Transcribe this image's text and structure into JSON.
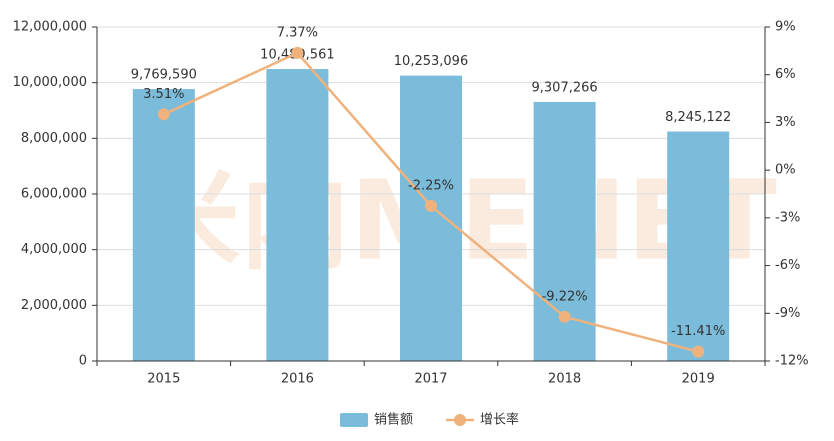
{
  "chart_data": {
    "type": "bar",
    "watermark": "米内MENET",
    "categories": [
      "2015",
      "2016",
      "2017",
      "2018",
      "2019"
    ],
    "series": [
      {
        "name": "销售额",
        "type": "bar",
        "color": "#7bbcdb",
        "axis": "y",
        "values": [
          9769590,
          10489561,
          10253096,
          9307266,
          8245122
        ],
        "value_labels": [
          "9,769,590",
          "10,489,561",
          "10,253,096",
          "9,307,266",
          "8,245,122"
        ]
      },
      {
        "name": "增长率",
        "type": "line",
        "color": "#efb27c",
        "axis": "y2",
        "values": [
          3.51,
          7.37,
          -2.25,
          -9.22,
          -11.41
        ],
        "value_labels": [
          "3.51%",
          "7.37%",
          "-2.25%",
          "-9.22%",
          "-11.41%"
        ]
      }
    ],
    "ylim": [
      0,
      12000000
    ],
    "yticks": [
      {
        "value": 0,
        "label": "0"
      },
      {
        "value": 2000000,
        "label": "2,000,000"
      },
      {
        "value": 4000000,
        "label": "4,000,000"
      },
      {
        "value": 6000000,
        "label": "6,000,000"
      },
      {
        "value": 8000000,
        "label": "8,000,000"
      },
      {
        "value": 10000000,
        "label": "10,000,000"
      },
      {
        "value": 12000000,
        "label": "12,000,000"
      }
    ],
    "y2lim": [
      -12,
      9
    ],
    "y2ticks": [
      {
        "value": -12,
        "label": "-12%"
      },
      {
        "value": -9,
        "label": "-9%"
      },
      {
        "value": -6,
        "label": "-6%"
      },
      {
        "value": -3,
        "label": "-3%"
      },
      {
        "value": 0,
        "label": "0%"
      },
      {
        "value": 3,
        "label": "3%"
      },
      {
        "value": 6,
        "label": "6%"
      },
      {
        "value": 9,
        "label": "9%"
      }
    ],
    "grid": true,
    "legend": "bottom"
  }
}
